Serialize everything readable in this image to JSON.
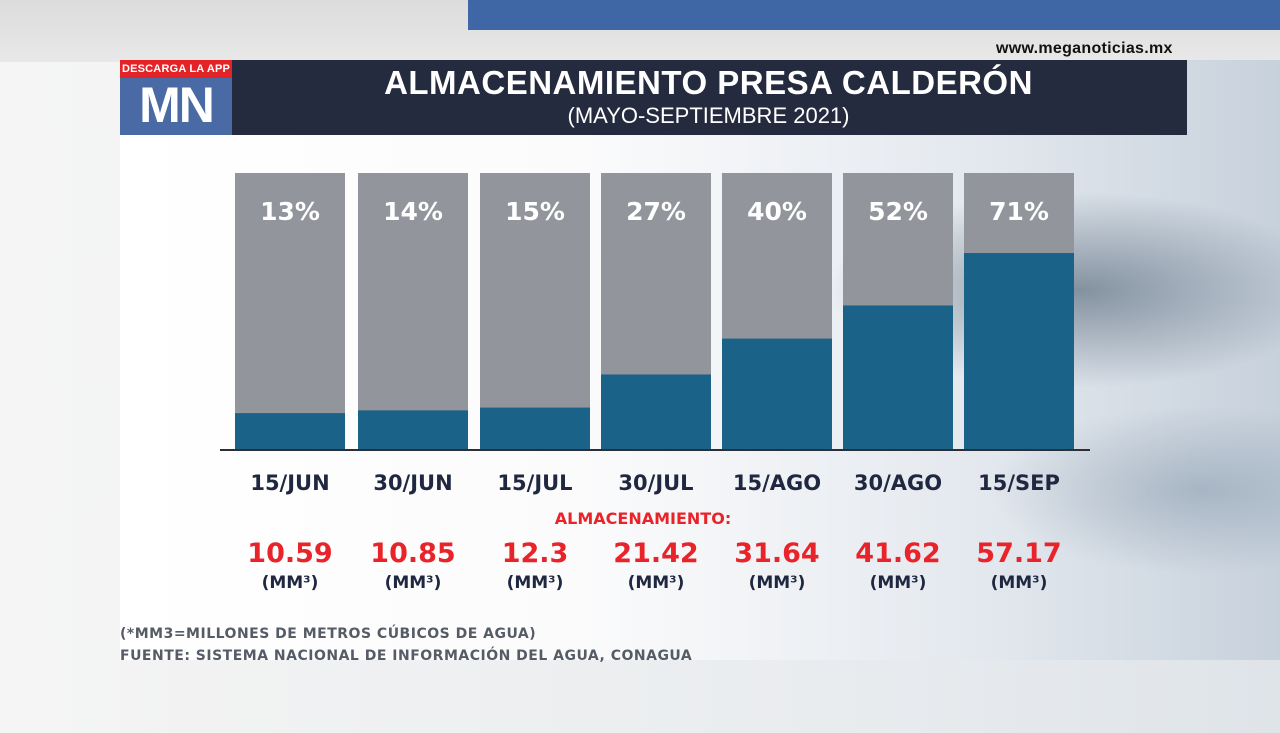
{
  "header": {
    "url": "www.meganoticias.mx",
    "logo_ribbon": "DESCARGA LA APP",
    "logo_text": "MN"
  },
  "colors": {
    "bar_background": "#93959c",
    "bar_fill": "#1b6288",
    "title_bar": "#252b3f",
    "value_red": "#e8232a",
    "label_navy": "#1f2840",
    "accent_blue": "#3f67a6"
  },
  "chart_data": {
    "type": "bar",
    "title": "ALMACENAMIENTO PRESA CALDERÓN",
    "subtitle": "(MAYO-SEPTIEMBRE 2021)",
    "categories": [
      "15/JUN",
      "30/JUN",
      "15/JUL",
      "30/JUL",
      "15/AGO",
      "30/AGO",
      "15/SEP"
    ],
    "percent_labels": [
      "13%",
      "14%",
      "15%",
      "27%",
      "40%",
      "52%",
      "71%"
    ],
    "values": [
      13,
      14,
      15,
      27,
      40,
      52,
      71
    ],
    "ylim": [
      0,
      100
    ],
    "storage_heading": "ALMACENAMIENTO:",
    "storage_values": [
      "10.59",
      "10.85",
      "12.3",
      "21.42",
      "31.64",
      "41.62",
      "57.17"
    ],
    "storage_unit": "(MM³)"
  },
  "footer": {
    "note": "(*MM3=MILLONES DE METROS CÚBICOS DE AGUA)",
    "source": "FUENTE:  SISTEMA NACIONAL DE INFORMACIÓN DEL AGUA, CONAGUA"
  }
}
